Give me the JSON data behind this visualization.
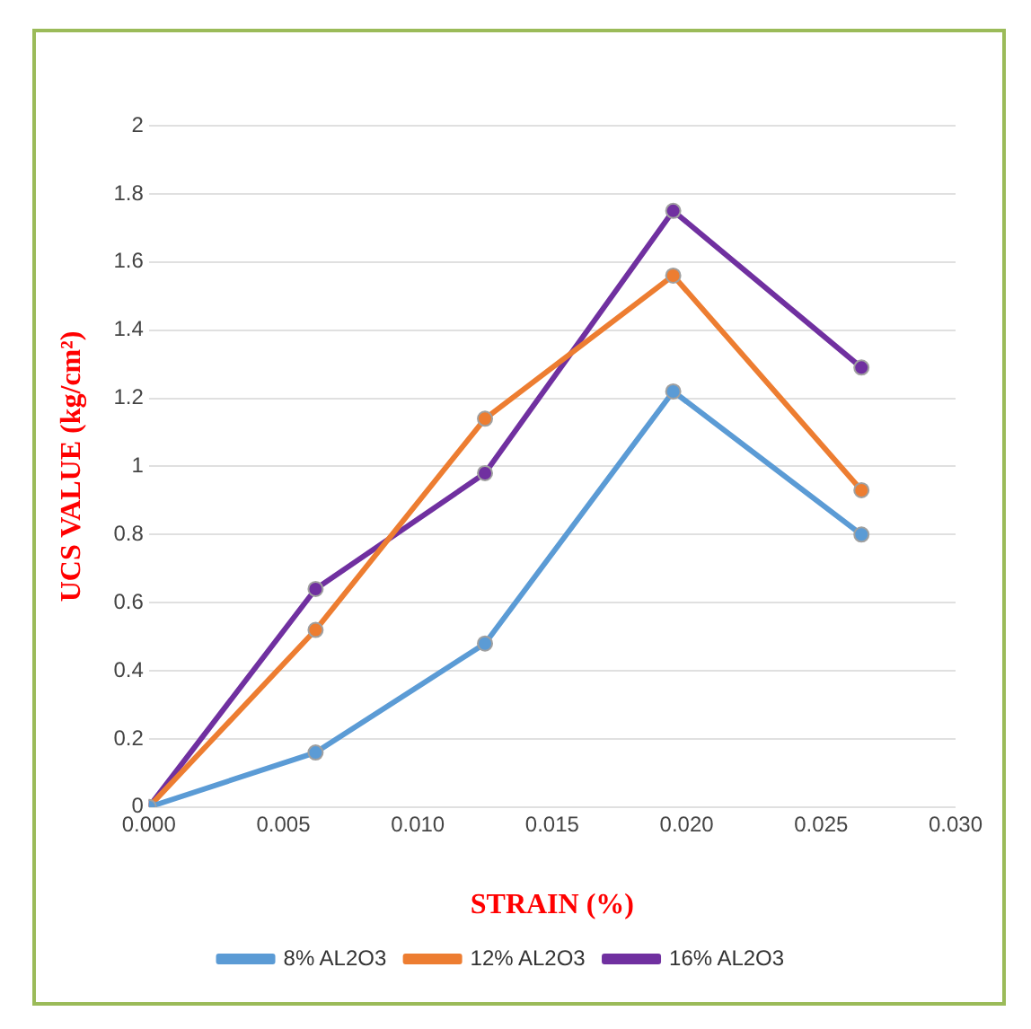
{
  "chart_data": {
    "type": "line",
    "xlabel": "STRAIN (%)",
    "ylabel": "UCS VALUE (kg/cm²)",
    "x": [
      0,
      0.0062,
      0.0125,
      0.0195,
      0.0265
    ],
    "series": [
      {
        "name": "8% AL2O3",
        "color": "#5b9bd5",
        "values": [
          0,
          0.16,
          0.48,
          1.22,
          0.8
        ]
      },
      {
        "name": "12% AL2O3",
        "color": "#ed7d31",
        "values": [
          0,
          0.52,
          1.14,
          1.56,
          0.93
        ]
      },
      {
        "name": "16% AL2O3",
        "color": "#7030a0",
        "values": [
          0,
          0.64,
          0.98,
          1.75,
          1.29
        ]
      }
    ],
    "xlim": [
      0,
      0.03
    ],
    "xticks": [
      {
        "value": 0,
        "label": "0.000"
      },
      {
        "value": 0.005,
        "label": "0.005"
      },
      {
        "value": 0.01,
        "label": "0.010"
      },
      {
        "value": 0.015,
        "label": "0.015"
      },
      {
        "value": 0.02,
        "label": "0.020"
      },
      {
        "value": 0.025,
        "label": "0.025"
      },
      {
        "value": 0.03,
        "label": "0.030"
      }
    ],
    "ylim": [
      0,
      2
    ],
    "yticks": [
      0,
      0.2,
      0.4,
      0.6,
      0.8,
      1,
      1.2,
      1.4,
      1.6,
      1.8,
      2
    ],
    "grid": "y",
    "legend": "bottom",
    "marker": "circle",
    "line_style": "solid"
  }
}
